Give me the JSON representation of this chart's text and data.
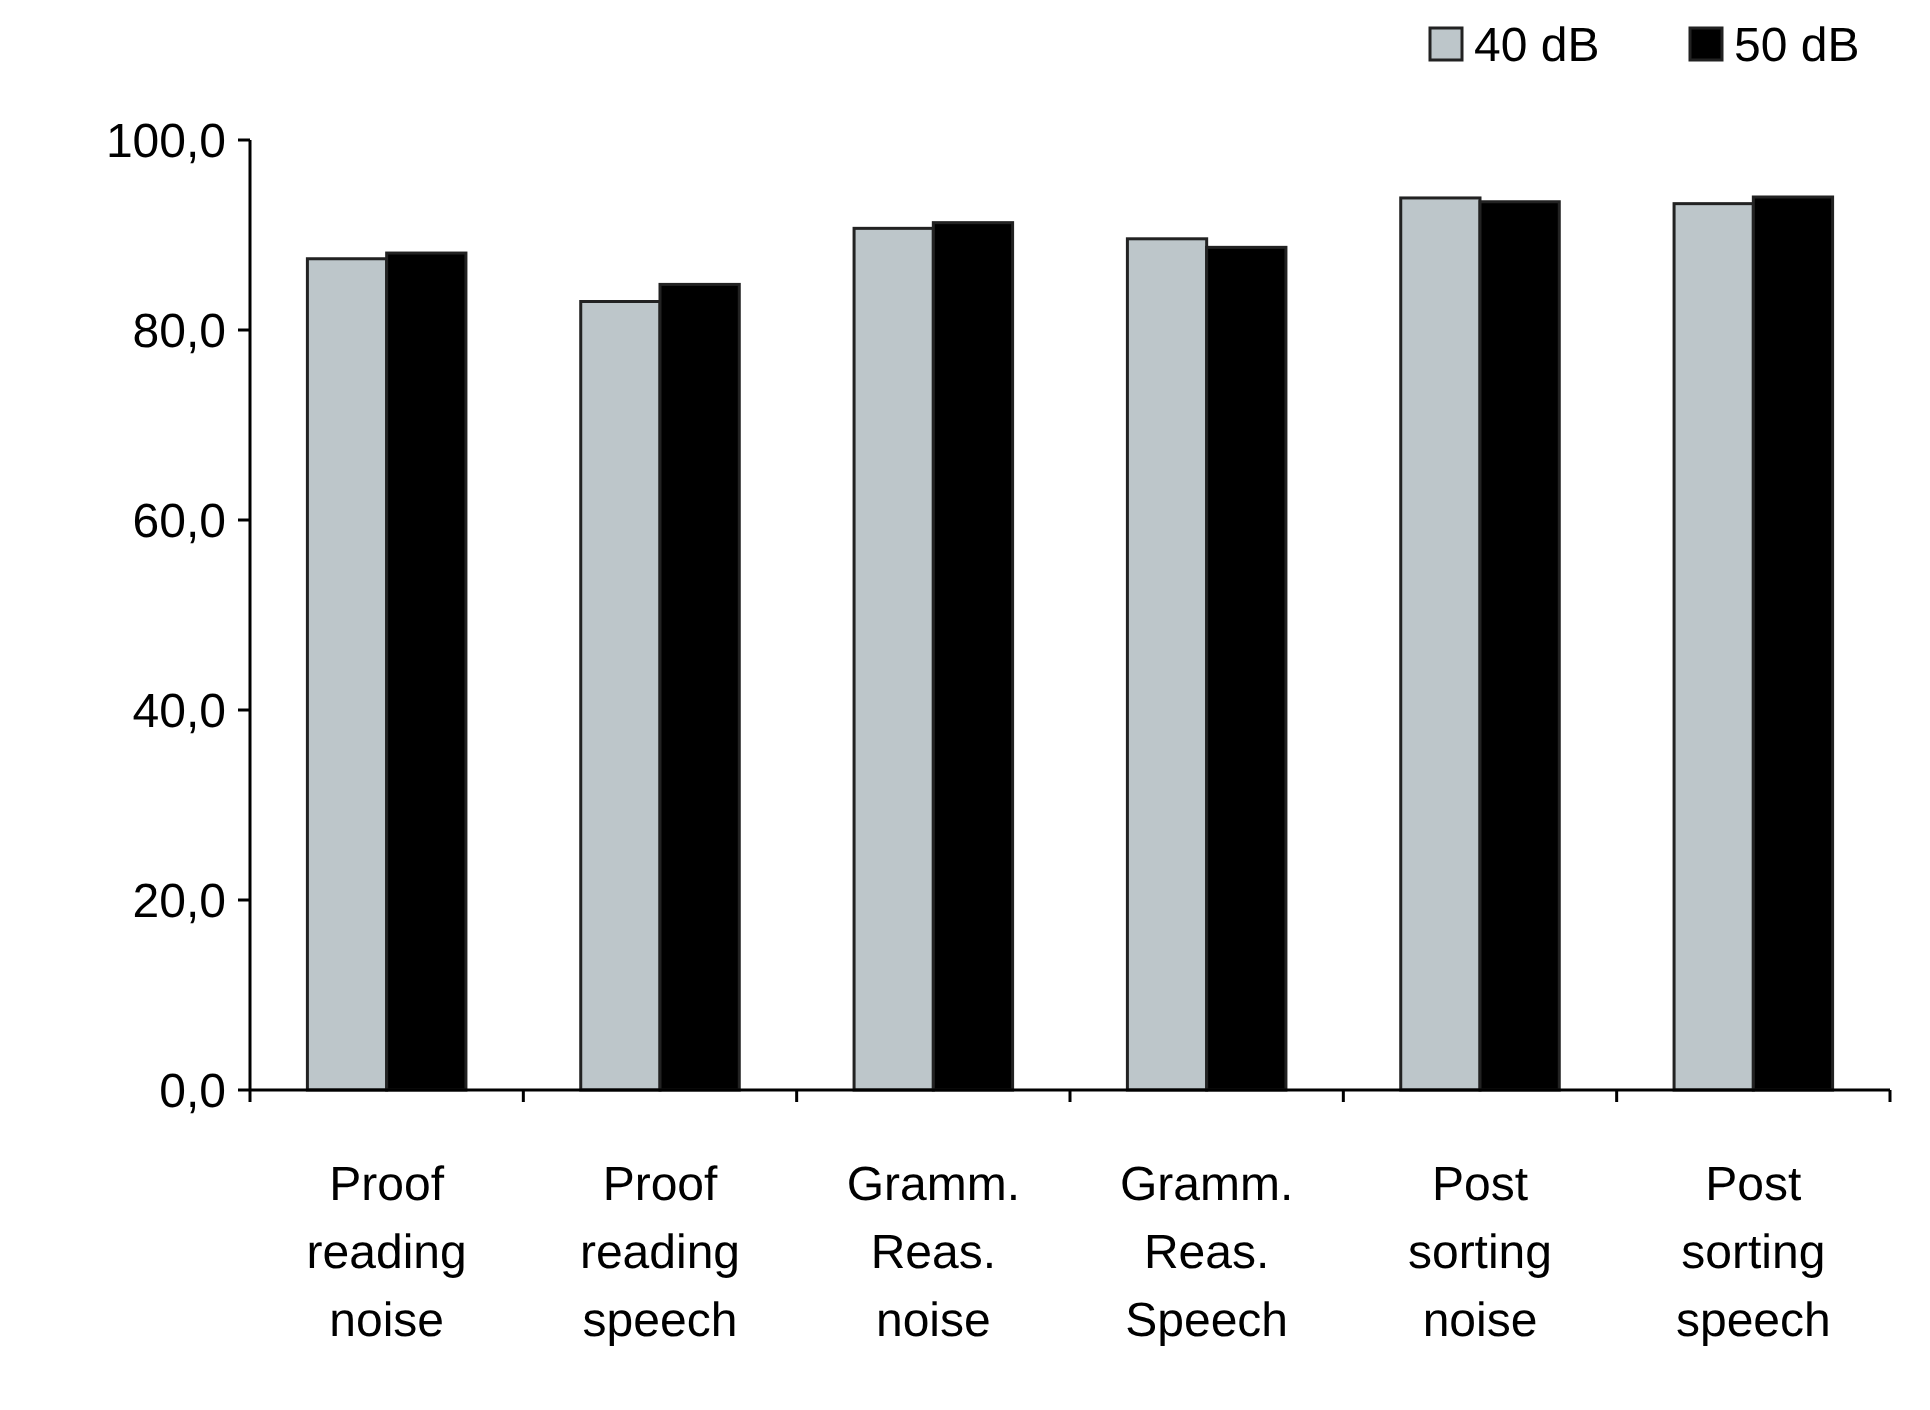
{
  "chart_data": {
    "type": "bar",
    "categories": [
      "Proof reading noise",
      "Proof reading speech",
      "Gramm. Reas. noise",
      "Gramm. Reas. Speech",
      "Post sorting noise",
      "Post sorting speech"
    ],
    "series": [
      {
        "name": "40 dB",
        "color": "#bdc6ca",
        "values": [
          87.5,
          83.0,
          90.7,
          89.6,
          93.9,
          93.3
        ]
      },
      {
        "name": "50 dB",
        "color": "#000000",
        "values": [
          88.1,
          84.8,
          91.3,
          88.7,
          93.5,
          94.0
        ]
      }
    ],
    "ylim": [
      0,
      100
    ],
    "yticks": [
      {
        "value": 0,
        "label": "0,0"
      },
      {
        "value": 20,
        "label": "20,0"
      },
      {
        "value": 40,
        "label": "40,0"
      },
      {
        "value": 60,
        "label": "60,0"
      },
      {
        "value": 80,
        "label": "80,0"
      },
      {
        "value": 100,
        "label": "100,0"
      }
    ],
    "grid": false,
    "legend": "top right"
  }
}
